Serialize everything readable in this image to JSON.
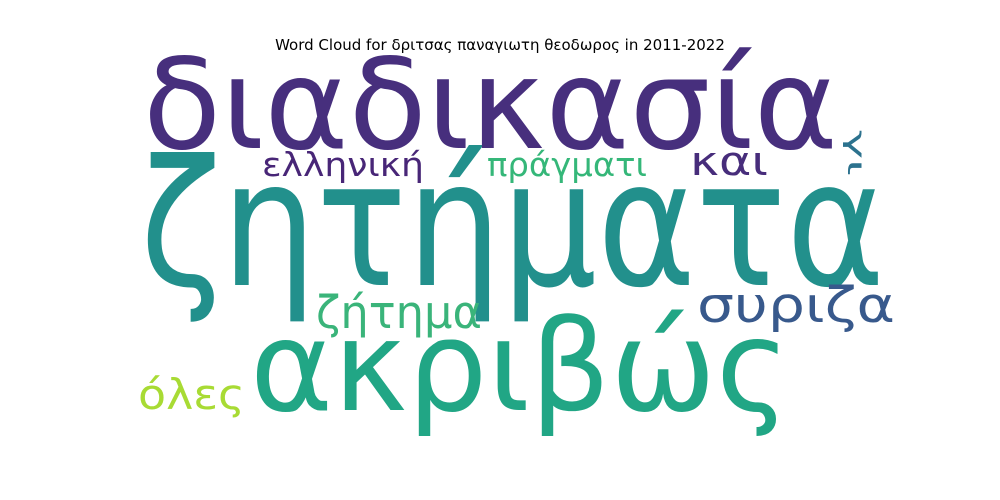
{
  "chart_data": {
    "type": "wordcloud",
    "title": "Word Cloud for δριτσας παναγιωτη θεοδωρος in 2011-2022",
    "words": [
      {
        "text": "ζητήματα",
        "weight": 1.0,
        "color": "#22908c"
      },
      {
        "text": "διαδικασία",
        "weight": 0.72,
        "color": "#472f7d"
      },
      {
        "text": "ακριβώς",
        "weight": 0.72,
        "color": "#21a685"
      },
      {
        "text": "συριζα",
        "weight": 0.28,
        "color": "#38598c"
      },
      {
        "text": "ζήτημα",
        "weight": 0.26,
        "color": "#3ab47a"
      },
      {
        "text": "και",
        "weight": 0.23,
        "color": "#472d7b"
      },
      {
        "text": "όλες",
        "weight": 0.24,
        "color": "#a8db34"
      },
      {
        "text": "ελληνική",
        "weight": 0.19,
        "color": "#482677"
      },
      {
        "text": "πράγματι",
        "weight": 0.19,
        "color": "#35b779"
      },
      {
        "text": "γι",
        "weight": 0.14,
        "color": "#2c728e"
      }
    ]
  }
}
